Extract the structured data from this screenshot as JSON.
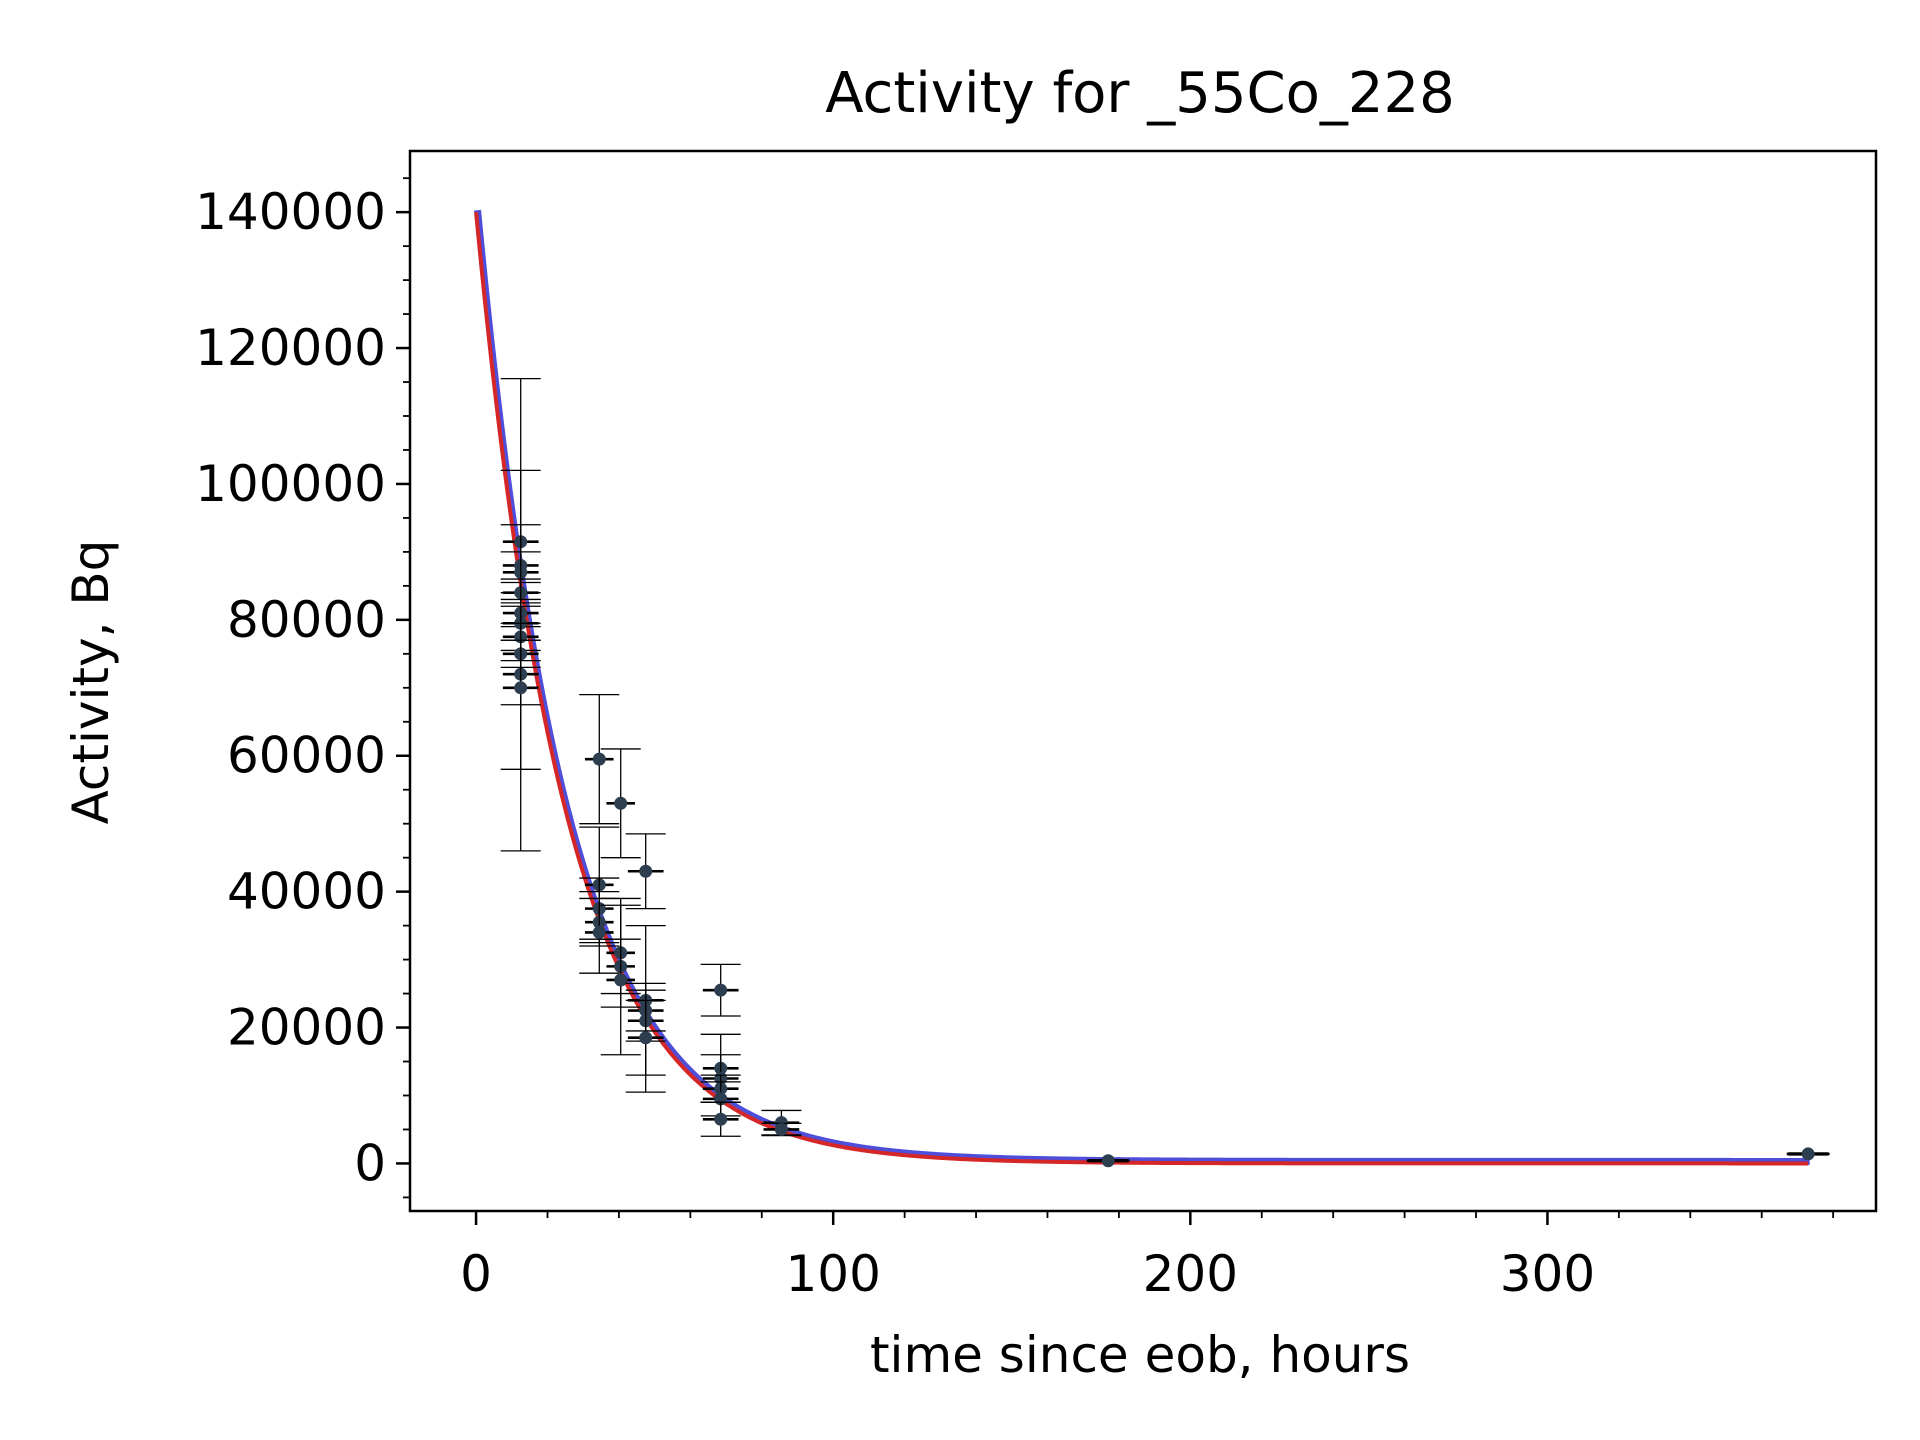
{
  "chart_data": {
    "type": "scatter",
    "title": "Activity for _55Co_228",
    "xlabel": "time since eob, hours",
    "ylabel": "Activity, Bq",
    "xlim": [
      -18.5,
      392
    ],
    "ylim": [
      -7000,
      149000
    ],
    "xticks": [
      0,
      100,
      200,
      300
    ],
    "yticks": [
      0,
      20000,
      40000,
      60000,
      80000,
      100000,
      120000,
      140000
    ],
    "x_minor_step": 20,
    "y_minor_step": 5000,
    "grid": false,
    "colors": {
      "points": "#2c3e50",
      "errorbars": "#000000",
      "fit_line": "#d62728",
      "fit_band": "#3b3bd6"
    },
    "fit": {
      "model": "exponential decay",
      "A0": 140000,
      "half_life_hours": 17.53,
      "x_range": [
        0,
        373
      ]
    },
    "series": [
      {
        "values": [
          {
            "x": 12.5,
            "y": 91500,
            "yerr": 24000,
            "xerr": 5
          },
          {
            "x": 12.5,
            "y": 88000,
            "yerr": 14000,
            "xerr": 5
          },
          {
            "x": 12.5,
            "y": 87000,
            "yerr": 3000,
            "xerr": 5
          },
          {
            "x": 12.5,
            "y": 84000,
            "yerr": 1500,
            "xerr": 5
          },
          {
            "x": 12.5,
            "y": 81000,
            "yerr": 2000,
            "xerr": 5
          },
          {
            "x": 12.5,
            "y": 79500,
            "yerr": 2500,
            "xerr": 5
          },
          {
            "x": 12.5,
            "y": 77500,
            "yerr": 2000,
            "xerr": 5
          },
          {
            "x": 12.5,
            "y": 75000,
            "yerr": 2000,
            "xerr": 5
          },
          {
            "x": 12.5,
            "y": 72000,
            "yerr": 14000,
            "xerr": 5
          },
          {
            "x": 12.5,
            "y": 70000,
            "yerr": 24000,
            "xerr": 5
          },
          {
            "x": 34.5,
            "y": 59500,
            "yerr": 9500,
            "xerr": 4
          },
          {
            "x": 34.5,
            "y": 41000,
            "yerr": 8500,
            "xerr": 4
          },
          {
            "x": 34.5,
            "y": 37500,
            "yerr": 4500,
            "xerr": 4
          },
          {
            "x": 34.5,
            "y": 35500,
            "yerr": 3500,
            "xerr": 4
          },
          {
            "x": 34.5,
            "y": 34000,
            "yerr": 6000,
            "xerr": 4
          },
          {
            "x": 40.5,
            "y": 53000,
            "yerr": 8000,
            "xerr": 4
          },
          {
            "x": 40.5,
            "y": 31000,
            "yerr": 8000,
            "xerr": 4
          },
          {
            "x": 40.5,
            "y": 29000,
            "yerr": 4000,
            "xerr": 4
          },
          {
            "x": 40.5,
            "y": 27000,
            "yerr": 11000,
            "xerr": 4
          },
          {
            "x": 47.5,
            "y": 43000,
            "yerr": 5500,
            "xerr": 5
          },
          {
            "x": 47.5,
            "y": 24000,
            "yerr": 11000,
            "xerr": 5
          },
          {
            "x": 47.5,
            "y": 22500,
            "yerr": 3000,
            "xerr": 5
          },
          {
            "x": 47.5,
            "y": 21000,
            "yerr": 3000,
            "xerr": 5
          },
          {
            "x": 47.5,
            "y": 18500,
            "yerr": 8000,
            "xerr": 5
          },
          {
            "x": 68.5,
            "y": 25500,
            "yerr": 3800,
            "xerr": 5
          },
          {
            "x": 68.5,
            "y": 14000,
            "yerr": 5000,
            "xerr": 5
          },
          {
            "x": 68.5,
            "y": 12500,
            "yerr": 3500,
            "xerr": 5
          },
          {
            "x": 68.5,
            "y": 11000,
            "yerr": 2000,
            "xerr": 5
          },
          {
            "x": 68.5,
            "y": 9500,
            "yerr": 2500,
            "xerr": 5
          },
          {
            "x": 68.5,
            "y": 6500,
            "yerr": 2500,
            "xerr": 5
          },
          {
            "x": 85.5,
            "y": 6000,
            "yerr": 1800,
            "xerr": 5
          },
          {
            "x": 85.5,
            "y": 5000,
            "yerr": 900,
            "xerr": 5
          },
          {
            "x": 177,
            "y": 400,
            "yerr": 150,
            "xerr": 6
          },
          {
            "x": 373,
            "y": 1400,
            "yerr": 150,
            "xerr": 6
          }
        ]
      }
    ]
  }
}
